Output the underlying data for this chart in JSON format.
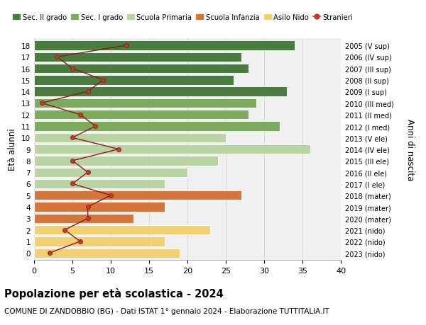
{
  "ages": [
    18,
    17,
    16,
    15,
    14,
    13,
    12,
    11,
    10,
    9,
    8,
    7,
    6,
    5,
    4,
    3,
    2,
    1,
    0
  ],
  "birth_years": [
    "2005 (V sup)",
    "2006 (IV sup)",
    "2007 (III sup)",
    "2008 (II sup)",
    "2009 (I sup)",
    "2010 (III med)",
    "2011 (II med)",
    "2012 (I med)",
    "2013 (V ele)",
    "2014 (IV ele)",
    "2015 (III ele)",
    "2016 (II ele)",
    "2017 (I ele)",
    "2018 (mater)",
    "2019 (mater)",
    "2020 (mater)",
    "2021 (nido)",
    "2022 (nido)",
    "2023 (nido)"
  ],
  "bar_values": [
    34,
    27,
    28,
    26,
    33,
    29,
    28,
    32,
    25,
    36,
    24,
    20,
    17,
    27,
    17,
    13,
    23,
    17,
    19
  ],
  "bar_colors": [
    "#4a7c3f",
    "#4a7c3f",
    "#4a7c3f",
    "#4a7c3f",
    "#4a7c3f",
    "#7dab5e",
    "#7dab5e",
    "#7dab5e",
    "#b8d4a0",
    "#b8d4a0",
    "#b8d4a0",
    "#b8d4a0",
    "#b8d4a0",
    "#d4753a",
    "#d4753a",
    "#d4753a",
    "#f0d070",
    "#f0d070",
    "#f0d070"
  ],
  "stranieri": [
    12,
    3,
    5,
    9,
    7,
    1,
    6,
    8,
    5,
    11,
    5,
    7,
    5,
    10,
    7,
    7,
    4,
    6,
    2
  ],
  "legend_labels": [
    "Sec. II grado",
    "Sec. I grado",
    "Scuola Primaria",
    "Scuola Infanzia",
    "Asilo Nido",
    "Stranieri"
  ],
  "legend_colors": [
    "#4a7c3f",
    "#7dab5e",
    "#b8d4a0",
    "#d4753a",
    "#f0d070",
    "#c0392b"
  ],
  "title": "Popolazione per età scolastica - 2024",
  "subtitle": "COMUNE DI ZANDOBBIO (BG) - Dati ISTAT 1° gennaio 2024 - Elaborazione TUTTITALIA.IT",
  "ylabel_left": "Età alunni",
  "ylabel_right": "Anni di nascita",
  "xlim": [
    0,
    40
  ],
  "xticks": [
    0,
    5,
    10,
    15,
    20,
    25,
    30,
    35,
    40
  ],
  "background_color": "#ffffff",
  "plot_bg_color": "#f0f0f0",
  "grid_color": "#d8d8d8",
  "stranieri_line_color": "#8b1a1a",
  "stranieri_dot_color": "#c0392b"
}
